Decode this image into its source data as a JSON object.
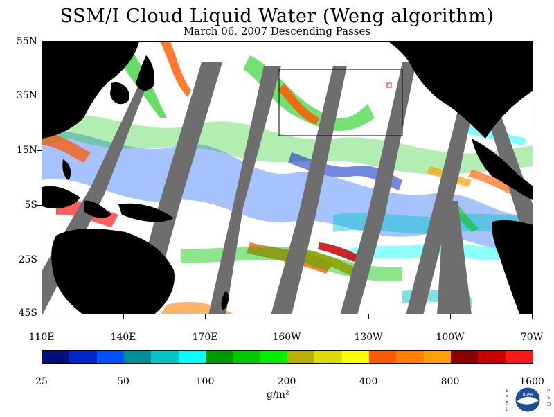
{
  "title": "SSM/I Cloud Liquid Water (Weng algorithm)",
  "subtitle": "March 06, 2007  Descending Passes",
  "lat_labels": [
    "55N",
    "35N",
    "15N",
    "5S",
    "25S",
    "45S"
  ],
  "lon_labels": [
    "110E",
    "140E",
    "170E",
    "160W",
    "130W",
    "100W",
    "70W"
  ],
  "colorbar": {
    "labels": [
      "25",
      "50",
      "100",
      "200",
      "400",
      "800",
      "1600"
    ],
    "colors": [
      "#00107a",
      "#0026c7",
      "#0052ff",
      "#008e96",
      "#00c4c4",
      "#00ffff",
      "#009a00",
      "#00c800",
      "#00f000",
      "#b8b000",
      "#dcdc00",
      "#ffff00",
      "#ff5a00",
      "#ff8000",
      "#ffa000",
      "#8a0000",
      "#c80000",
      "#ff1a1a"
    ]
  },
  "units": "g/m²",
  "logo": {
    "left": "ESRL",
    "right": "PSD",
    "center": "NOAA"
  },
  "map_colors": {
    "land": "#000000",
    "no_data": "#6e6e6e",
    "background": "#ffffff"
  }
}
